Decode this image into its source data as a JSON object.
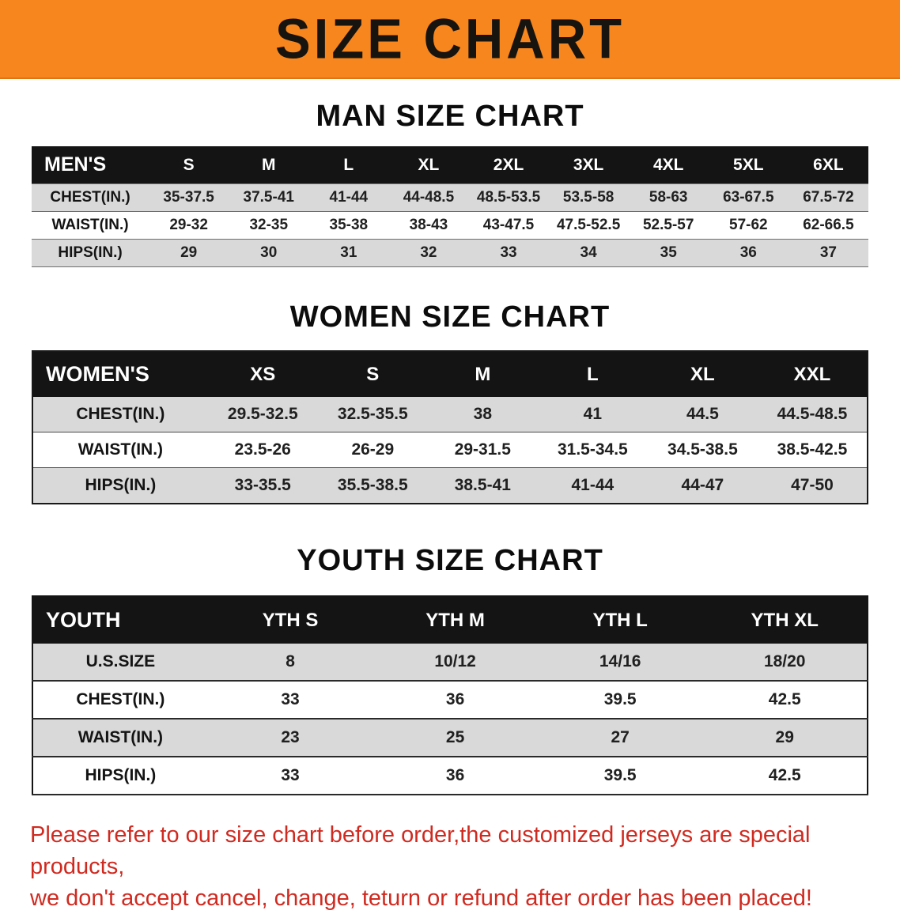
{
  "colors": {
    "banner-bg": "#f6861d",
    "banner-edge": "#e0750f",
    "header-bg": "#141414",
    "stripe": "#d9d9d9",
    "disclaimer-color": "#d02a20"
  },
  "banner": {
    "title": "SIZE CHART"
  },
  "sections": {
    "men": {
      "heading": "MAN SIZE CHART",
      "table": {
        "header": [
          "MEN'S",
          "S",
          "M",
          "L",
          "XL",
          "2XL",
          "3XL",
          "4XL",
          "5XL",
          "6XL"
        ],
        "rows": [
          [
            "CHEST(IN.)",
            "35-37.5",
            "37.5-41",
            "41-44",
            "44-48.5",
            "48.5-53.5",
            "53.5-58",
            "58-63",
            "63-67.5",
            "67.5-72"
          ],
          [
            "WAIST(IN.)",
            "29-32",
            "32-35",
            "35-38",
            "38-43",
            "43-47.5",
            "47.5-52.5",
            "52.5-57",
            "57-62",
            "62-66.5"
          ],
          [
            "HIPS(IN.)",
            "29",
            "30",
            "31",
            "32",
            "33",
            "34",
            "35",
            "36",
            "37"
          ]
        ]
      }
    },
    "women": {
      "heading": "WOMEN SIZE CHART",
      "table": {
        "header": [
          "WOMEN'S",
          "XS",
          "S",
          "M",
          "L",
          "XL",
          "XXL"
        ],
        "rows": [
          [
            "CHEST(IN.)",
            "29.5-32.5",
            "32.5-35.5",
            "38",
            "41",
            "44.5",
            "44.5-48.5"
          ],
          [
            "WAIST(IN.)",
            "23.5-26",
            "26-29",
            "29-31.5",
            "31.5-34.5",
            "34.5-38.5",
            "38.5-42.5"
          ],
          [
            "HIPS(IN.)",
            "33-35.5",
            "35.5-38.5",
            "38.5-41",
            "41-44",
            "44-47",
            "47-50"
          ]
        ]
      }
    },
    "youth": {
      "heading": "YOUTH SIZE CHART",
      "table": {
        "header": [
          "YOUTH",
          "YTH S",
          "YTH M",
          "YTH L",
          "YTH XL"
        ],
        "rows": [
          [
            "U.S.SIZE",
            "8",
            "10/12",
            "14/16",
            "18/20"
          ],
          [
            "CHEST(IN.)",
            "33",
            "36",
            "39.5",
            "42.5"
          ],
          [
            "WAIST(IN.)",
            "23",
            "25",
            "27",
            "29"
          ],
          [
            "HIPS(IN.)",
            "33",
            "36",
            "39.5",
            "42.5"
          ]
        ]
      }
    }
  },
  "disclaimer": {
    "line1": "Please refer to our size chart before order,the customized jerseys are special products,",
    "line2": "we don't accept cancel, change, teturn or refund after order has been placed!"
  }
}
